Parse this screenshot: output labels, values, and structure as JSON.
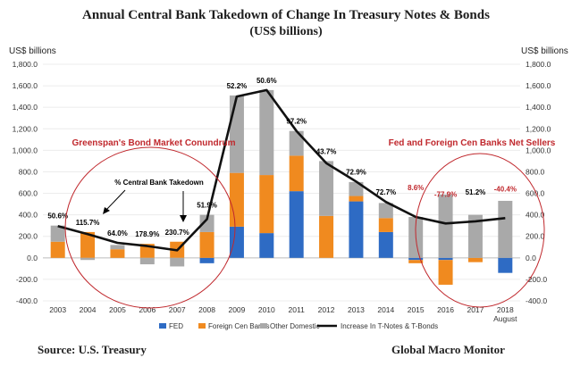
{
  "chart_data": {
    "type": "bar",
    "stacked": true,
    "title": "Annual Central Bank Takedown of Change In Treasury Notes & Bonds",
    "subtitle": "(US$ billions)",
    "ylabel_left": "US$ billions",
    "ylabel_right": "US$ billions",
    "ylim": [
      -400,
      1800
    ],
    "yticks": [
      "-400.0",
      "-200.0",
      "0.0",
      "200.0",
      "400.0",
      "600.0",
      "800.0",
      "1,000.0",
      "1,200.0",
      "1,400.0",
      "1,600.0",
      "1,800.0"
    ],
    "categories": [
      "2003",
      "2004",
      "2005",
      "2006",
      "2007",
      "2008",
      "2009",
      "2010",
      "2011",
      "2012",
      "2013",
      "2014",
      "2015",
      "2016",
      "2017",
      "2018"
    ],
    "category_sublabel": "August",
    "series": [
      {
        "name": "FED",
        "color": "#2e6bc4",
        "values": [
          0,
          0,
          0,
          0,
          0,
          -50,
          290,
          230,
          620,
          0,
          525,
          240,
          -20,
          -20,
          0,
          -140
        ]
      },
      {
        "name": "Foreign Cen Banks",
        "color": "#f08a1f",
        "values": [
          150,
          240,
          80,
          130,
          150,
          240,
          500,
          540,
          330,
          390,
          50,
          130,
          -30,
          -230,
          -40,
          0
        ]
      },
      {
        "name": "Other Domestic",
        "color": "#a9a9a9",
        "values": [
          150,
          -20,
          40,
          -60,
          -80,
          160,
          720,
          790,
          230,
          510,
          130,
          140,
          380,
          590,
          400,
          530
        ]
      },
      {
        "name": "Increase In T-Notes & T-Bonds",
        "type": "line",
        "color": "#111111",
        "values": [
          295,
          220,
          140,
          110,
          70,
          360,
          1500,
          1560,
          1180,
          880,
          710,
          520,
          380,
          320,
          340,
          370
        ]
      }
    ],
    "pct_labels": [
      "50.6%",
      "115.7%",
      "64.0%",
      "178.9%",
      "230.7%",
      "51.9%",
      "52.2%",
      "50.6%",
      "97.2%",
      "43.7%",
      "72.9%",
      "72.7%",
      "8.6%",
      "-77.9%",
      "51.2%",
      "-40.4%"
    ],
    "pct_colors": [
      "#000000",
      "#000000",
      "#000000",
      "#000000",
      "#000000",
      "#000000",
      "#000000",
      "#000000",
      "#000000",
      "#000000",
      "#000000",
      "#000000",
      "#c0282d",
      "#c0282d",
      "#000000",
      "#c0282d"
    ],
    "annotations": {
      "left": "Greenspan's Bond Market Conundrum",
      "right": "Fed and Foreign Cen Banks Net Sellers",
      "arrow_label": "% Central Bank Takedown"
    },
    "grid": true,
    "legend_position": "bottom"
  },
  "footer": {
    "source": "Source:  U.S. Treasury",
    "brand": "Global Macro Monitor"
  }
}
